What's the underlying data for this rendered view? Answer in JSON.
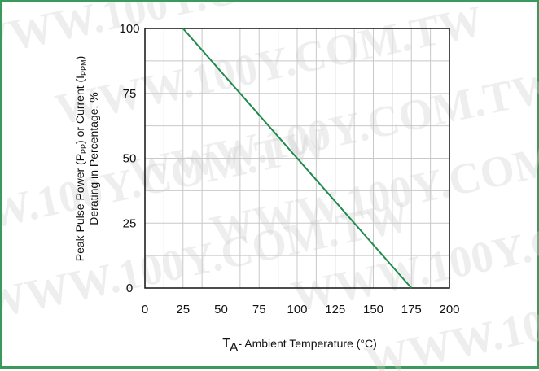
{
  "watermark": "WWW.100Y.COM.TW",
  "colors": {
    "frame": "#3a9a5b",
    "line": "#1f8a4c",
    "grid": "#c8c8c8"
  },
  "chart_data": {
    "type": "line",
    "x_ticks": [
      "0",
      "25",
      "50",
      "75",
      "100",
      "125",
      "150",
      "175",
      "200"
    ],
    "y_ticks": [
      "0",
      "25",
      "50",
      "75",
      "100"
    ],
    "xlim": [
      0,
      200
    ],
    "ylim": [
      0,
      100
    ],
    "grid": true,
    "xlabel": {
      "main": "T",
      "sub": "A",
      "rest": "- Ambient Temperature (°C)"
    },
    "ylabel": {
      "line1": {
        "a": "Peak Pulse Power (P",
        "b": "PP",
        "c": ") or Current (I",
        "d": "PPM",
        "e": ")"
      },
      "line2": "Derating in Percentage, %"
    },
    "series": [
      {
        "x": [
          25,
          175
        ],
        "y": [
          100,
          0
        ]
      }
    ]
  }
}
